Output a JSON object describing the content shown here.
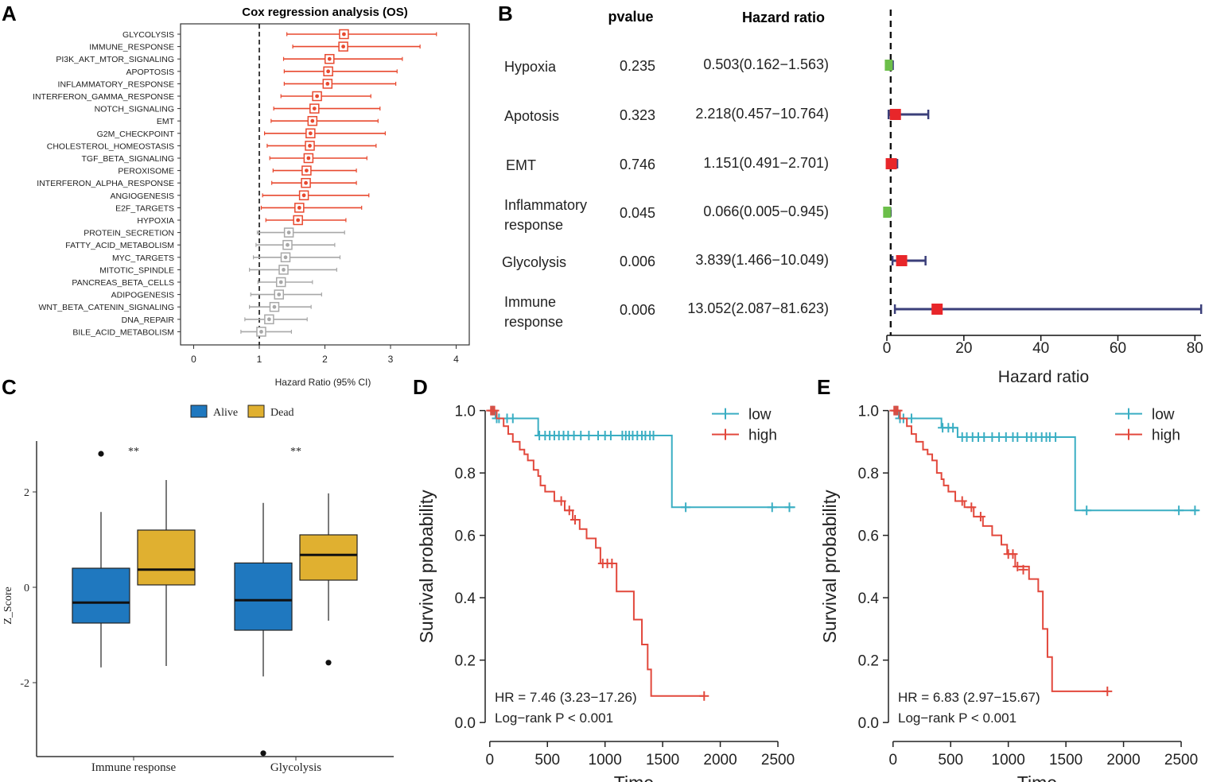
{
  "panels": {
    "A": "A",
    "B": "B",
    "C": "C",
    "D": "D",
    "E": "E"
  },
  "chart_data": [
    {
      "id": "A",
      "type": "forest",
      "title": "Cox regression analysis (OS)",
      "xlabel": "Hazard Ratio (95% CI)",
      "xlim": [
        -0.2,
        4.2
      ],
      "xticks": [
        0,
        1,
        2,
        3,
        4
      ],
      "reference_line": 1,
      "colors": {
        "significant": "#e8492f",
        "nonsignificant": "#a8a8a8"
      },
      "rows": [
        {
          "label": "GLYCOLYSIS",
          "hr": 2.29,
          "lo": 1.42,
          "hi": 3.7,
          "significant": true
        },
        {
          "label": "IMMUNE_RESPONSE",
          "hr": 2.28,
          "lo": 1.51,
          "hi": 3.45,
          "significant": true
        },
        {
          "label": "PI3K_AKT_MTOR_SIGNALING",
          "hr": 2.07,
          "lo": 1.37,
          "hi": 3.18,
          "significant": true
        },
        {
          "label": "APOPTOSIS",
          "hr": 2.05,
          "lo": 1.38,
          "hi": 3.1,
          "significant": true
        },
        {
          "label": "INFLAMMATORY_RESPONSE",
          "hr": 2.04,
          "lo": 1.38,
          "hi": 3.08,
          "significant": true
        },
        {
          "label": "INTERFERON_GAMMA_RESPONSE",
          "hr": 1.88,
          "lo": 1.33,
          "hi": 2.7,
          "significant": true
        },
        {
          "label": "NOTCH_SIGNALING",
          "hr": 1.84,
          "lo": 1.22,
          "hi": 2.84,
          "significant": true
        },
        {
          "label": "EMT",
          "hr": 1.81,
          "lo": 1.18,
          "hi": 2.81,
          "significant": true
        },
        {
          "label": "G2M_CHECKPOINT",
          "hr": 1.78,
          "lo": 1.08,
          "hi": 2.92,
          "significant": true
        },
        {
          "label": "CHOLESTEROL_HOMEOSTASIS",
          "hr": 1.77,
          "lo": 1.12,
          "hi": 2.78,
          "significant": true
        },
        {
          "label": "TGF_BETA_SIGNALING",
          "hr": 1.75,
          "lo": 1.16,
          "hi": 2.64,
          "significant": true
        },
        {
          "label": "PEROXISOME",
          "hr": 1.72,
          "lo": 1.21,
          "hi": 2.48,
          "significant": true
        },
        {
          "label": "INTERFERON_ALPHA_RESPONSE",
          "hr": 1.71,
          "lo": 1.19,
          "hi": 2.48,
          "significant": true
        },
        {
          "label": "ANGIOGENESIS",
          "hr": 1.68,
          "lo": 1.05,
          "hi": 2.67,
          "significant": true
        },
        {
          "label": "E2F_TARGETS",
          "hr": 1.61,
          "lo": 1.03,
          "hi": 2.56,
          "significant": true
        },
        {
          "label": "HYPOXIA",
          "hr": 1.59,
          "lo": 1.1,
          "hi": 2.32,
          "significant": true
        },
        {
          "label": "PROTEIN_SECRETION",
          "hr": 1.45,
          "lo": 0.97,
          "hi": 2.3,
          "significant": false
        },
        {
          "label": "FATTY_ACID_METABOLISM",
          "hr": 1.43,
          "lo": 0.95,
          "hi": 2.15,
          "significant": false
        },
        {
          "label": "MYC_TARGETS",
          "hr": 1.4,
          "lo": 0.91,
          "hi": 2.23,
          "significant": false
        },
        {
          "label": "MITOTIC_SPINDLE",
          "hr": 1.37,
          "lo": 0.85,
          "hi": 2.18,
          "significant": false
        },
        {
          "label": "PANCREAS_BETA_CELLS",
          "hr": 1.33,
          "lo": 0.98,
          "hi": 1.81,
          "significant": false
        },
        {
          "label": "ADIPOGENESIS",
          "hr": 1.3,
          "lo": 0.87,
          "hi": 1.95,
          "significant": false
        },
        {
          "label": "WNT_BETA_CATENIN_SIGNALING",
          "hr": 1.23,
          "lo": 0.85,
          "hi": 1.79,
          "significant": false
        },
        {
          "label": "DNA_REPAIR",
          "hr": 1.15,
          "lo": 0.78,
          "hi": 1.73,
          "significant": false
        },
        {
          "label": "BILE_ACID_METABOLISM",
          "hr": 1.03,
          "lo": 0.72,
          "hi": 1.49,
          "significant": false
        }
      ]
    },
    {
      "id": "B",
      "type": "forest",
      "header_pvalue": "pvalue",
      "header_hr": "Hazard ratio",
      "xlabel": "Hazard ratio",
      "xlim": [
        0,
        82
      ],
      "xticks": [
        0,
        20,
        40,
        60,
        80
      ],
      "reference_line": 1,
      "colors": {
        "risk": "#e8262a",
        "protective": "#6cbf4a",
        "whisker": "#3b3f7a"
      },
      "rows": [
        {
          "label": [
            "Hypoxia"
          ],
          "pvalue": "0.235",
          "hr_text": "0.503(0.162−1.563)",
          "hr": 0.503,
          "lo": 0.162,
          "hi": 1.563
        },
        {
          "label": [
            "Apotosis"
          ],
          "pvalue": "0.323",
          "hr_text": "2.218(0.457−10.764)",
          "hr": 2.218,
          "lo": 0.457,
          "hi": 10.764
        },
        {
          "label": [
            "EMT"
          ],
          "pvalue": "0.746",
          "hr_text": "1.151(0.491−2.701)",
          "hr": 1.151,
          "lo": 0.491,
          "hi": 2.701
        },
        {
          "label": [
            "Inflammatory",
            "response"
          ],
          "pvalue": "0.045",
          "hr_text": "0.066(0.005−0.945)",
          "hr": 0.066,
          "lo": 0.005,
          "hi": 0.945
        },
        {
          "label": [
            "Glycolysis"
          ],
          "pvalue": "0.006",
          "hr_text": "3.839(1.466−10.049)",
          "hr": 3.839,
          "lo": 1.466,
          "hi": 10.049
        },
        {
          "label": [
            "Immune",
            "response"
          ],
          "pvalue": "0.006",
          "hr_text": "13.052(2.087−81.623)",
          "hr": 13.052,
          "lo": 2.087,
          "hi": 81.623
        }
      ]
    },
    {
      "id": "C",
      "type": "boxplot",
      "ylabel": "Z_Score",
      "yticks": [
        -2,
        0,
        2
      ],
      "ylim": [
        -3.8,
        3.2
      ],
      "legend": [
        {
          "name": "Alive",
          "color": "#1f78bf"
        },
        {
          "name": "Dead",
          "color": "#e0b030"
        }
      ],
      "groups": [
        {
          "name": "Immune response",
          "significance": "**",
          "boxes": [
            {
              "series": "Alive",
              "q1": -0.75,
              "median": -0.32,
              "q3": 0.4,
              "wmin": -1.68,
              "wmax": 1.58,
              "outliers": [
                2.8
              ]
            },
            {
              "series": "Dead",
              "q1": 0.05,
              "median": 0.37,
              "q3": 1.2,
              "wmin": -1.65,
              "wmax": 2.25,
              "outliers": []
            }
          ]
        },
        {
          "name": "Glycolysis",
          "significance": "**",
          "boxes": [
            {
              "series": "Alive",
              "q1": -0.9,
              "median": -0.27,
              "q3": 0.51,
              "wmin": -1.87,
              "wmax": 1.77,
              "outliers": [
                -3.48
              ]
            },
            {
              "series": "Dead",
              "q1": 0.15,
              "median": 0.68,
              "q3": 1.1,
              "wmin": -0.7,
              "wmax": 1.97,
              "outliers": [
                -1.58
              ]
            }
          ]
        }
      ]
    },
    {
      "id": "D",
      "type": "line",
      "subtype": "kaplan-meier",
      "xlabel": "Time",
      "ylabel": "Survival probability",
      "xlim": [
        -40,
        2700
      ],
      "ylim": [
        -0.02,
        1.05
      ],
      "xticks": [
        0,
        500,
        1000,
        1500,
        2000,
        2500
      ],
      "yticks": [
        "0.0",
        "0.2",
        "0.4",
        "0.6",
        "0.8",
        "1.0"
      ],
      "annotation": [
        "HR = 7.46 (3.23−17.26)",
        "Log−rank P < 0.001"
      ],
      "series": [
        {
          "name": "low",
          "color": "#3aaec3",
          "x": [
            0,
            50,
            420,
            1580,
            2650
          ],
          "y": [
            1.0,
            0.975,
            0.92,
            0.69,
            0.69
          ],
          "censored": [
            [
              20,
              1.0
            ],
            [
              30,
              1.0
            ],
            [
              60,
              0.975
            ],
            [
              80,
              0.975
            ],
            [
              150,
              0.975
            ],
            [
              200,
              0.975
            ],
            [
              430,
              0.92
            ],
            [
              480,
              0.92
            ],
            [
              520,
              0.92
            ],
            [
              560,
              0.92
            ],
            [
              600,
              0.92
            ],
            [
              640,
              0.92
            ],
            [
              680,
              0.92
            ],
            [
              730,
              0.92
            ],
            [
              790,
              0.92
            ],
            [
              860,
              0.92
            ],
            [
              940,
              0.92
            ],
            [
              1000,
              0.92
            ],
            [
              1050,
              0.92
            ],
            [
              1150,
              0.92
            ],
            [
              1180,
              0.92
            ],
            [
              1210,
              0.92
            ],
            [
              1240,
              0.92
            ],
            [
              1280,
              0.92
            ],
            [
              1320,
              0.92
            ],
            [
              1350,
              0.92
            ],
            [
              1390,
              0.92
            ],
            [
              1420,
              0.92
            ],
            [
              1700,
              0.69
            ],
            [
              2450,
              0.69
            ],
            [
              2600,
              0.69
            ]
          ]
        },
        {
          "name": "high",
          "color": "#e2483c",
          "x": [
            0,
            60,
            120,
            160,
            200,
            260,
            300,
            330,
            380,
            420,
            440,
            480,
            560,
            650,
            720,
            780,
            840,
            920,
            960,
            1100,
            1250,
            1320,
            1370,
            1400,
            1860
          ],
          "y": [
            1.0,
            0.975,
            0.95,
            0.925,
            0.9,
            0.875,
            0.86,
            0.84,
            0.81,
            0.79,
            0.76,
            0.74,
            0.71,
            0.68,
            0.65,
            0.62,
            0.59,
            0.56,
            0.51,
            0.42,
            0.33,
            0.25,
            0.17,
            0.085,
            0.085
          ],
          "censored": [
            [
              10,
              1.0
            ],
            [
              25,
              1.0
            ],
            [
              40,
              1.0
            ],
            [
              620,
              0.71
            ],
            [
              690,
              0.68
            ],
            [
              740,
              0.65
            ],
            [
              980,
              0.51
            ],
            [
              1020,
              0.51
            ],
            [
              1060,
              0.51
            ],
            [
              1860,
              0.085
            ]
          ]
        }
      ]
    },
    {
      "id": "E",
      "type": "line",
      "subtype": "kaplan-meier",
      "xlabel": "Time",
      "ylabel": "Survival probability",
      "xlim": [
        -40,
        2700
      ],
      "ylim": [
        -0.02,
        1.05
      ],
      "xticks": [
        0,
        500,
        1000,
        1500,
        2000,
        2500
      ],
      "yticks": [
        "0.0",
        "0.2",
        "0.4",
        "0.6",
        "0.8",
        "1.0"
      ],
      "annotation": [
        "HR = 6.83 (2.97−15.67)",
        "Log−rank P < 0.001"
      ],
      "series": [
        {
          "name": "low",
          "color": "#3aaec3",
          "x": [
            0,
            50,
            420,
            560,
            1580,
            2650
          ],
          "y": [
            1.0,
            0.975,
            0.945,
            0.915,
            0.68,
            0.68
          ],
          "censored": [
            [
              20,
              1.0
            ],
            [
              30,
              1.0
            ],
            [
              60,
              0.975
            ],
            [
              90,
              0.975
            ],
            [
              160,
              0.975
            ],
            [
              430,
              0.945
            ],
            [
              480,
              0.945
            ],
            [
              520,
              0.945
            ],
            [
              600,
              0.915
            ],
            [
              640,
              0.915
            ],
            [
              690,
              0.915
            ],
            [
              740,
              0.915
            ],
            [
              790,
              0.915
            ],
            [
              860,
              0.915
            ],
            [
              920,
              0.915
            ],
            [
              980,
              0.915
            ],
            [
              1040,
              0.915
            ],
            [
              1080,
              0.915
            ],
            [
              1160,
              0.915
            ],
            [
              1200,
              0.915
            ],
            [
              1240,
              0.915
            ],
            [
              1290,
              0.915
            ],
            [
              1330,
              0.915
            ],
            [
              1360,
              0.915
            ],
            [
              1410,
              0.915
            ],
            [
              1680,
              0.68
            ],
            [
              2480,
              0.68
            ],
            [
              2620,
              0.68
            ]
          ]
        },
        {
          "name": "high",
          "color": "#e2483c",
          "x": [
            0,
            60,
            120,
            160,
            200,
            260,
            300,
            340,
            380,
            420,
            440,
            480,
            540,
            620,
            700,
            780,
            860,
            940,
            990,
            1060,
            1180,
            1260,
            1300,
            1340,
            1380,
            1860
          ],
          "y": [
            1.0,
            0.975,
            0.95,
            0.925,
            0.9,
            0.875,
            0.86,
            0.84,
            0.8,
            0.78,
            0.76,
            0.74,
            0.71,
            0.69,
            0.66,
            0.63,
            0.6,
            0.57,
            0.54,
            0.5,
            0.46,
            0.42,
            0.3,
            0.21,
            0.1,
            0.1
          ],
          "censored": [
            [
              10,
              1.0
            ],
            [
              25,
              1.0
            ],
            [
              40,
              1.0
            ],
            [
              600,
              0.71
            ],
            [
              680,
              0.69
            ],
            [
              760,
              0.66
            ],
            [
              1000,
              0.54
            ],
            [
              1040,
              0.54
            ],
            [
              1080,
              0.5
            ],
            [
              1130,
              0.49
            ],
            [
              1860,
              0.1
            ]
          ]
        }
      ]
    }
  ]
}
